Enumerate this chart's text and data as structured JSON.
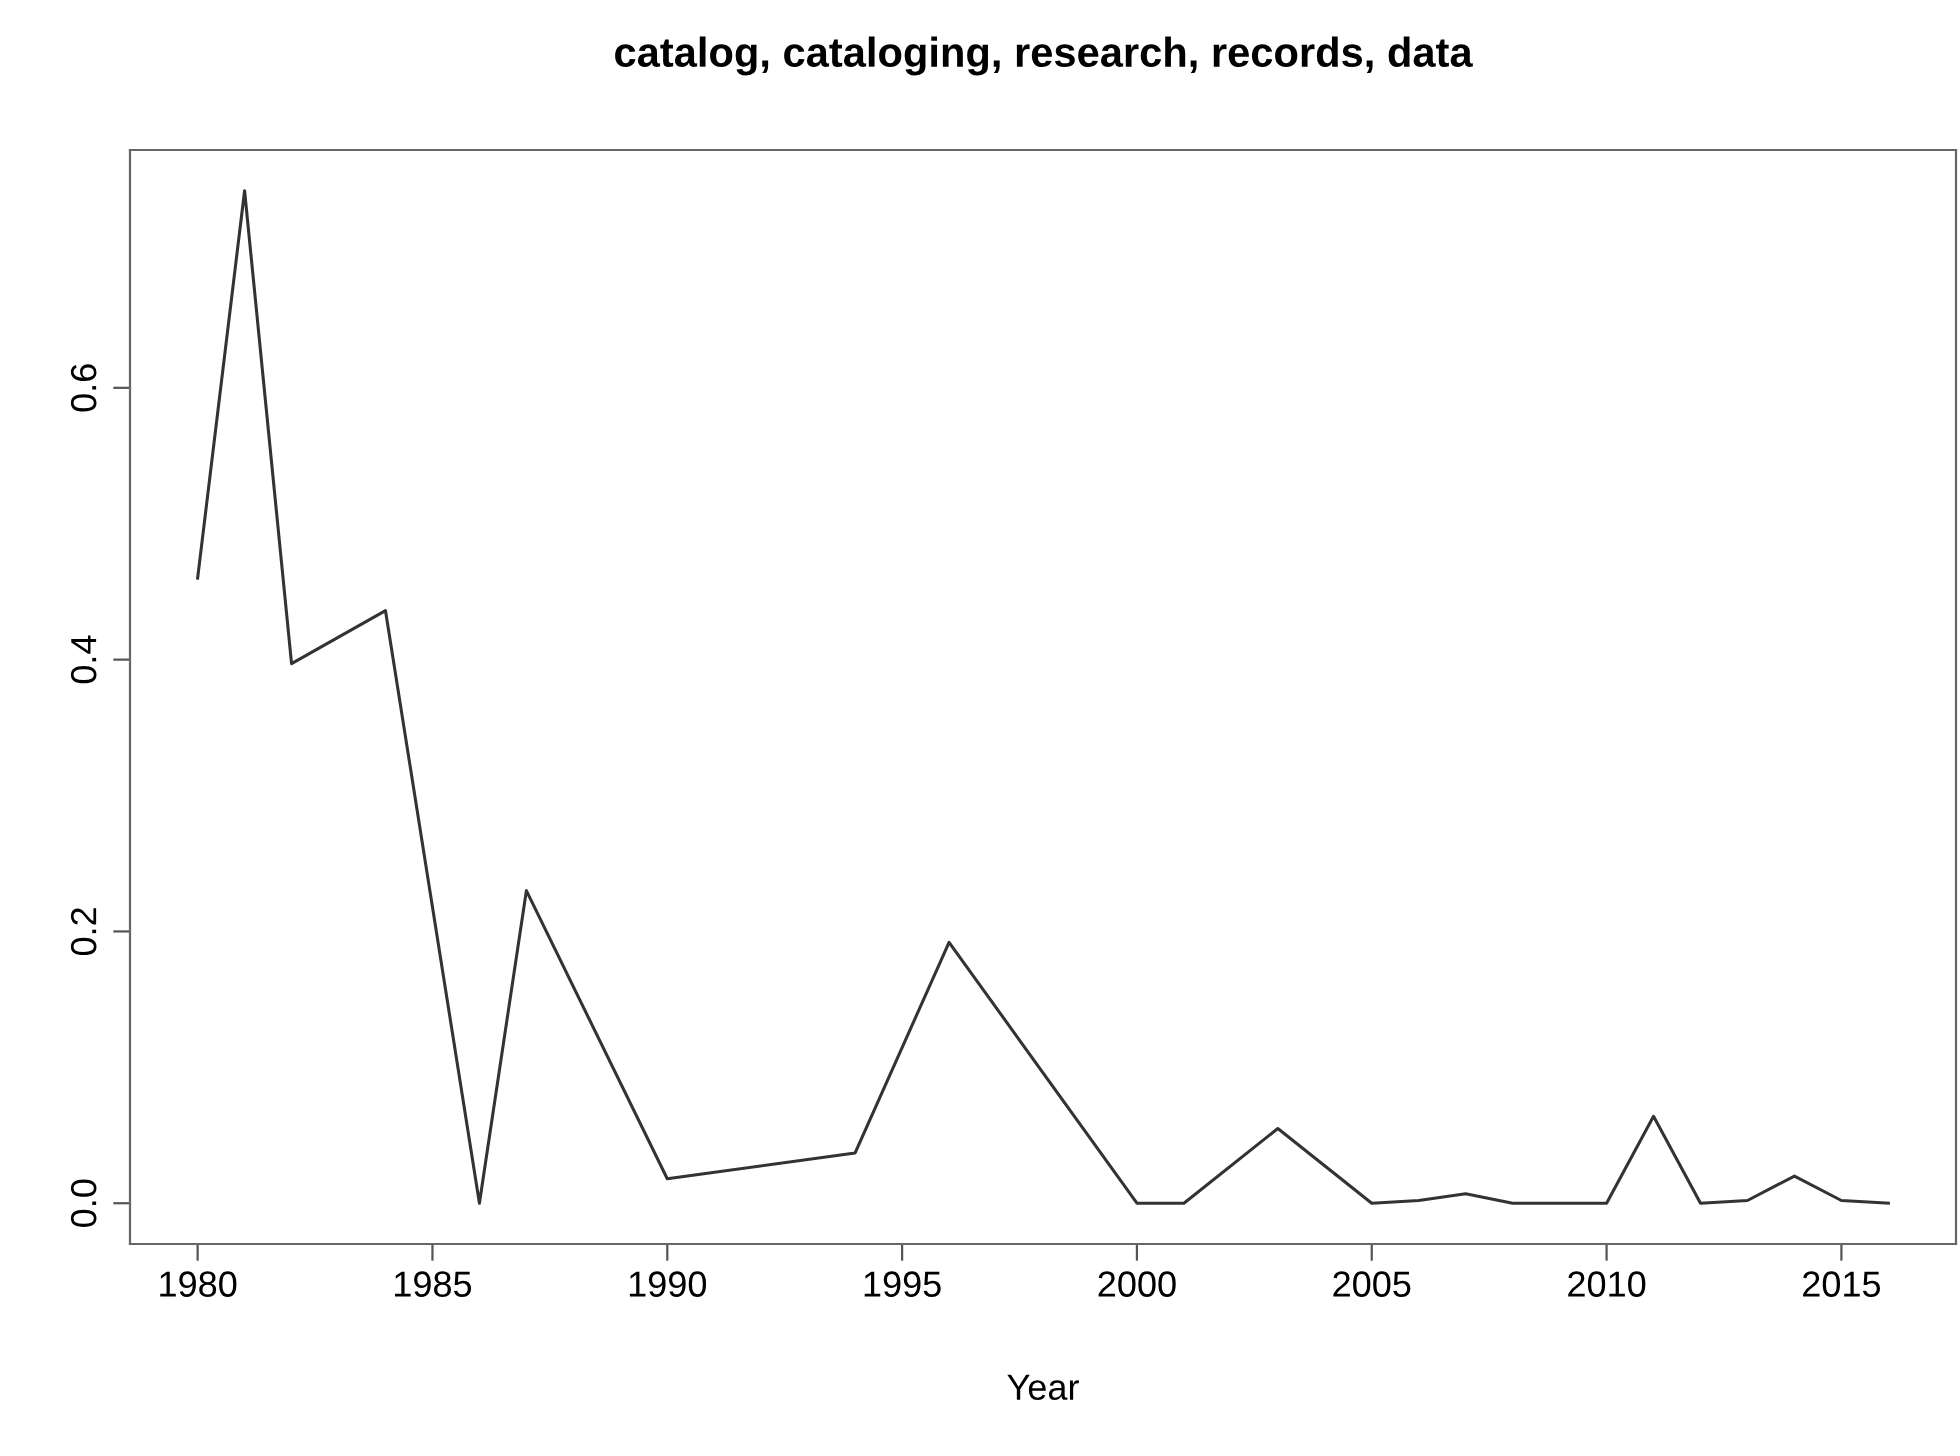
{
  "chart_data": {
    "type": "line",
    "title": "catalog, cataloging, research, records, data",
    "xlabel": "Year",
    "x": [
      1980,
      1981,
      1982,
      1984,
      1986,
      1987,
      1990,
      1994,
      1996,
      2000,
      2001,
      2003,
      2005,
      2006,
      2007,
      2008,
      2009,
      2010,
      2011,
      2012,
      2013,
      2014,
      2015,
      2016
    ],
    "series": [
      {
        "color": "#333333",
        "values": [
          0.46,
          0.745,
          0.397,
          0.436,
          0.0,
          0.23,
          0.018,
          0.037,
          0.192,
          0.0,
          0.0,
          0.055,
          0.0,
          0.002,
          0.007,
          0.0,
          0.0,
          0.0,
          0.064,
          0.0,
          0.002,
          0.02,
          0.002,
          0.0
        ]
      }
    ],
    "xlim": [
      1978.56,
      2017.44
    ],
    "ylim": [
      -0.03,
      0.775
    ],
    "xticks": [
      1980,
      1985,
      1990,
      1995,
      2000,
      2005,
      2010,
      2015
    ],
    "yticks": [
      {
        "value": 0,
        "label": "0.0"
      },
      0.2,
      0.4,
      0.6
    ],
    "grid": false,
    "legend": false,
    "marker": "none",
    "line_style": "solid"
  }
}
